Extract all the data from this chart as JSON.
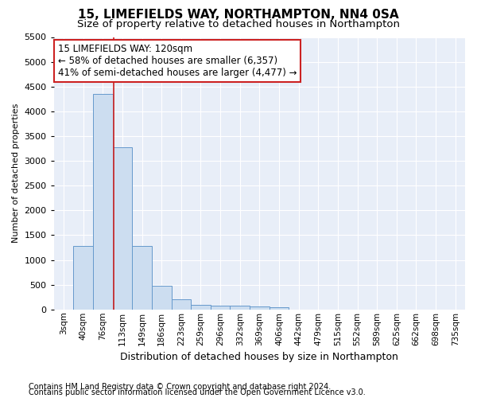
{
  "title": "15, LIMEFIELDS WAY, NORTHAMPTON, NN4 0SA",
  "subtitle": "Size of property relative to detached houses in Northampton",
  "xlabel": "Distribution of detached houses by size in Northampton",
  "ylabel": "Number of detached properties",
  "annotation_line1": "15 LIMEFIELDS WAY: 120sqm",
  "annotation_line2": "← 58% of detached houses are smaller (6,357)",
  "annotation_line3": "41% of semi-detached houses are larger (4,477) →",
  "footer1": "Contains HM Land Registry data © Crown copyright and database right 2024.",
  "footer2": "Contains public sector information licensed under the Open Government Licence v3.0.",
  "bin_labels": [
    "3sqm",
    "40sqm",
    "76sqm",
    "113sqm",
    "149sqm",
    "186sqm",
    "223sqm",
    "259sqm",
    "296sqm",
    "332sqm",
    "369sqm",
    "406sqm",
    "442sqm",
    "479sqm",
    "515sqm",
    "552sqm",
    "589sqm",
    "625sqm",
    "662sqm",
    "698sqm",
    "735sqm"
  ],
  "bar_values": [
    0,
    1280,
    4350,
    3280,
    1280,
    480,
    200,
    100,
    80,
    70,
    60,
    50,
    0,
    0,
    0,
    0,
    0,
    0,
    0,
    0,
    0
  ],
  "bar_color": "#ccddf0",
  "bar_edge_color": "#6699cc",
  "red_line_x": 2.55,
  "ylim": [
    0,
    5500
  ],
  "yticks": [
    0,
    500,
    1000,
    1500,
    2000,
    2500,
    3000,
    3500,
    4000,
    4500,
    5000,
    5500
  ],
  "bg_color": "#e8eef8",
  "plot_bg_color": "#e8eef8",
  "fig_bg_color": "#ffffff",
  "grid_color": "#ffffff",
  "annotation_box_facecolor": "#ffffff",
  "annotation_box_edgecolor": "#cc2222",
  "red_line_color": "#cc2222",
  "title_fontsize": 11,
  "subtitle_fontsize": 9.5,
  "ylabel_fontsize": 8,
  "xlabel_fontsize": 9,
  "tick_fontsize": 8,
  "xtick_fontsize": 7.5,
  "annotation_fontsize": 8.5,
  "footer_fontsize": 7
}
